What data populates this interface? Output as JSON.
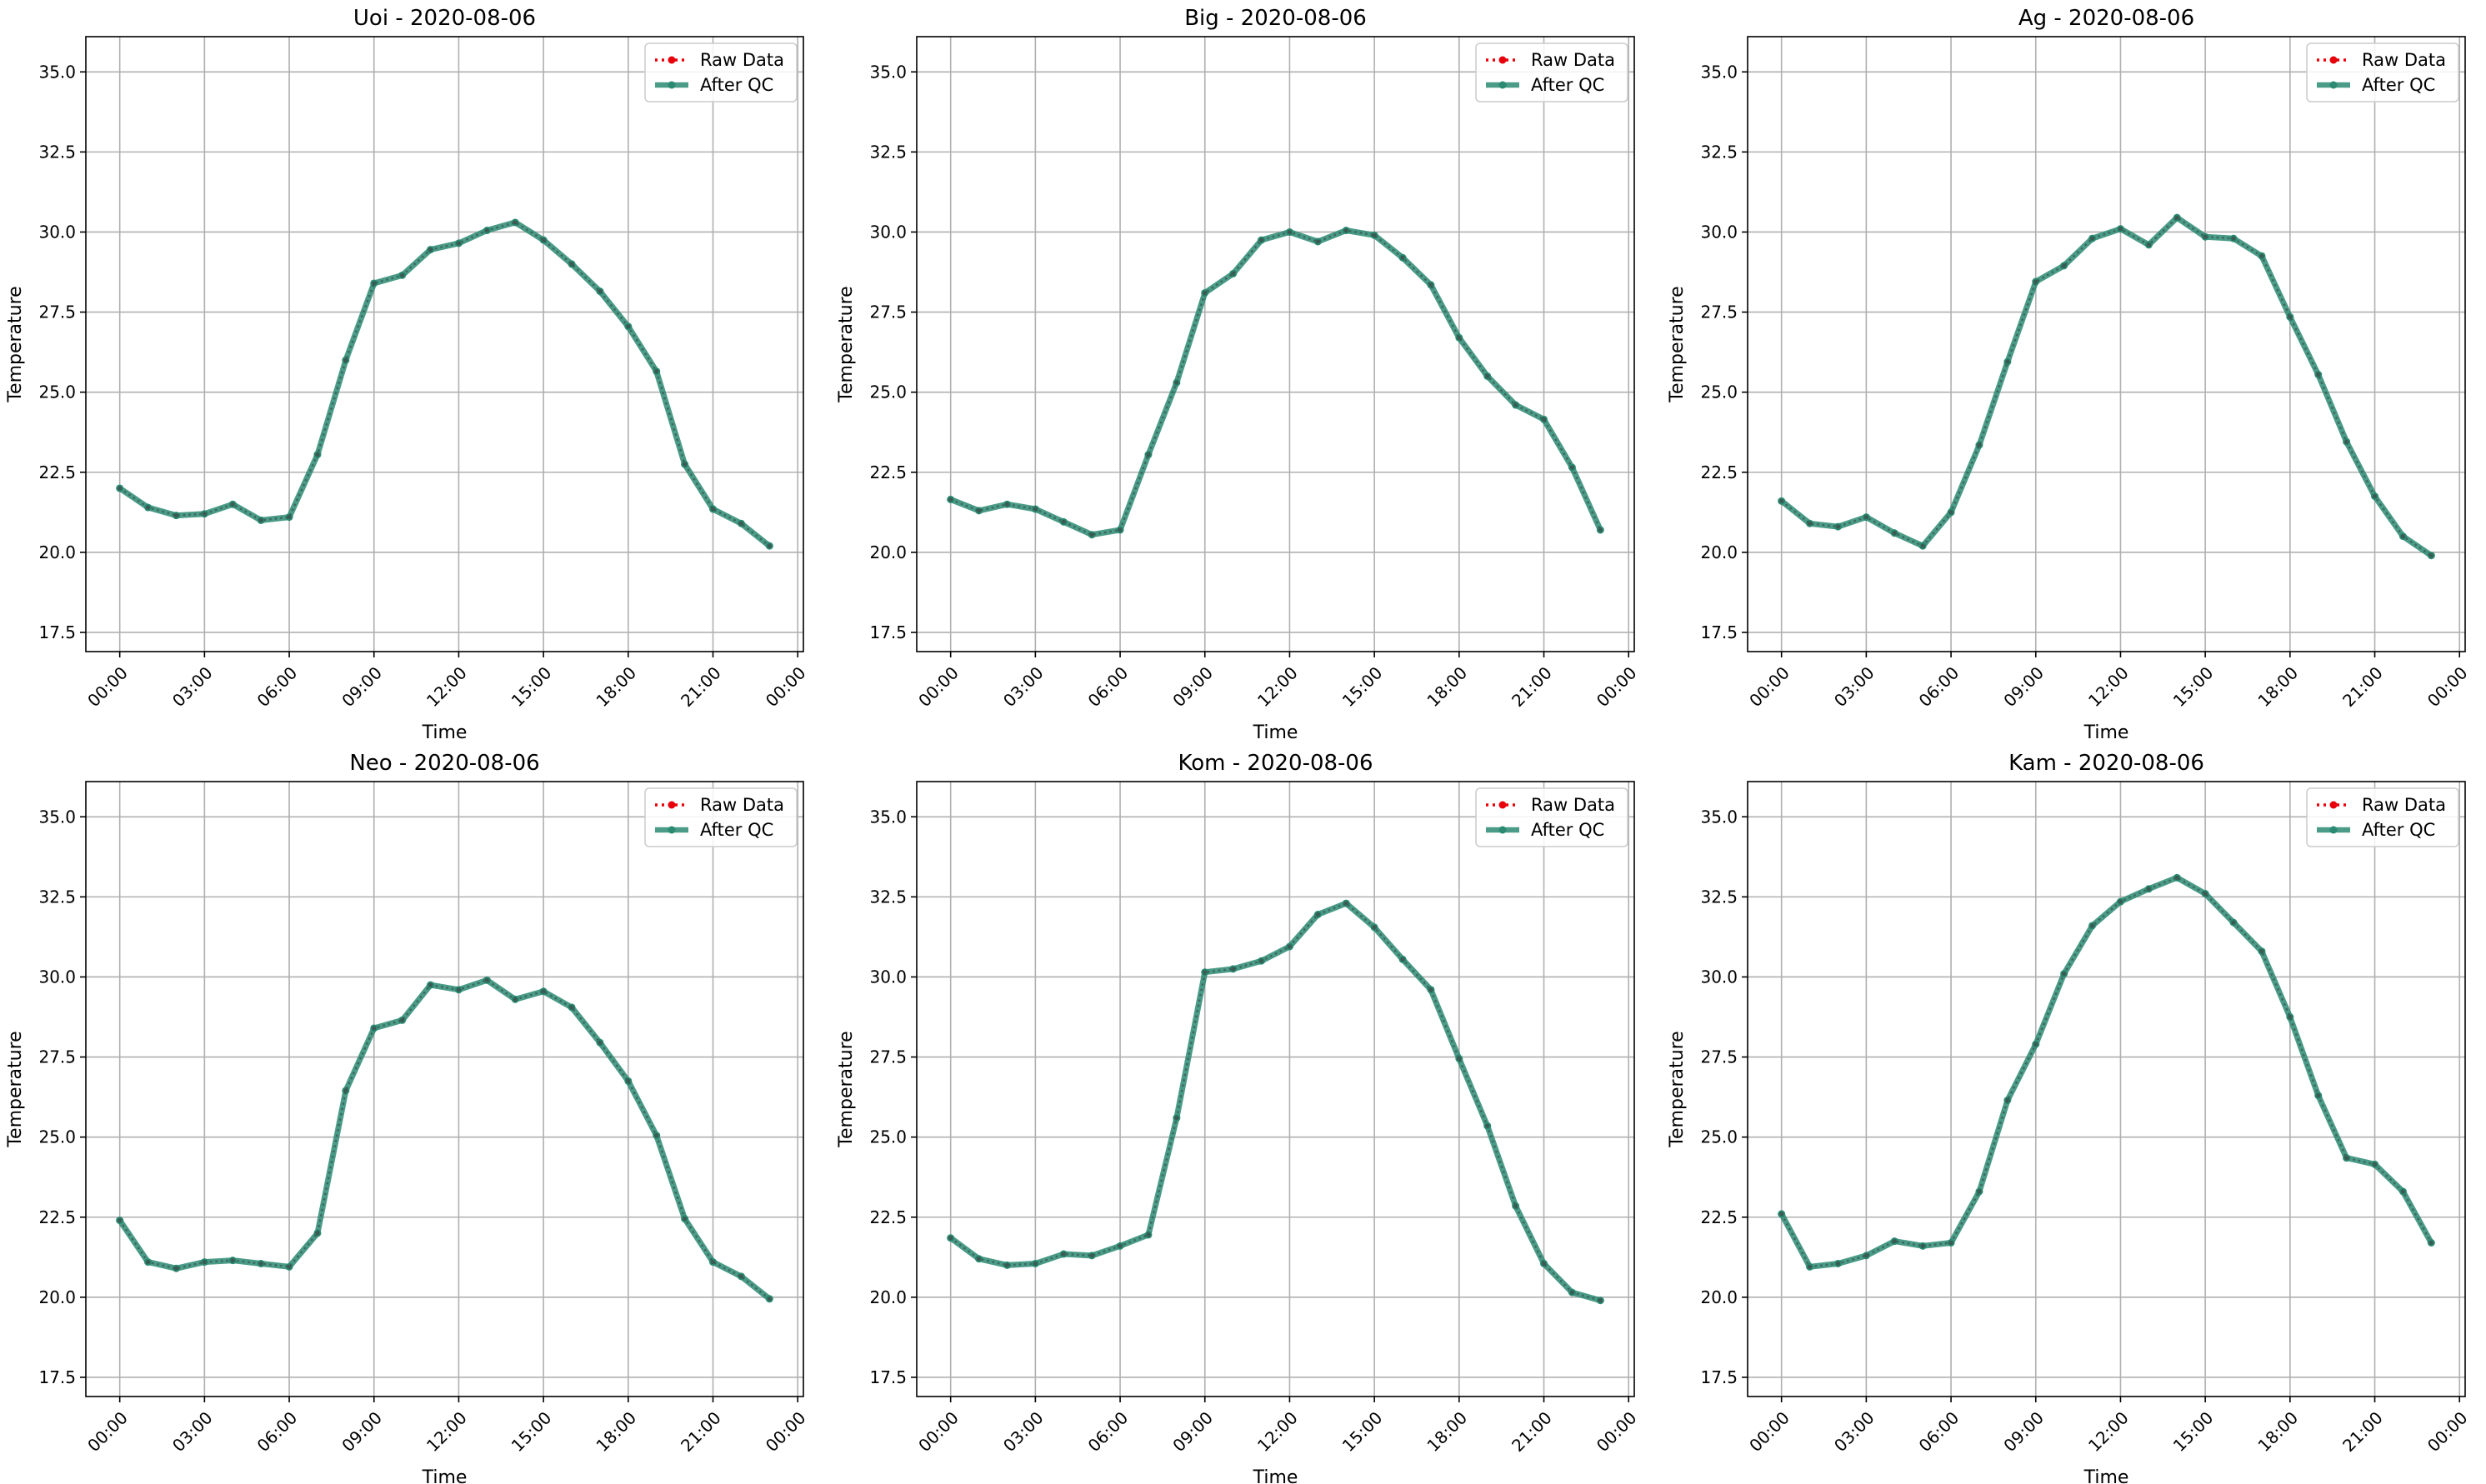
{
  "figure": {
    "background": "#ffffff"
  },
  "style": {
    "raw_color": "#e8000b",
    "qc_color": "#2a8a72",
    "grid_color": "#b0b0b0"
  },
  "chart_data": [
    {
      "type": "line",
      "title": "Uoi - 2020-08-06",
      "xlabel": "Time",
      "ylabel": "Temperature",
      "x_hours": [
        0,
        1,
        2,
        3,
        4,
        5,
        6,
        7,
        8,
        9,
        10,
        11,
        12,
        13,
        14,
        15,
        16,
        17,
        18,
        19,
        20,
        21,
        22,
        23
      ],
      "x_ticks": [
        "00:00",
        "03:00",
        "06:00",
        "09:00",
        "12:00",
        "15:00",
        "18:00",
        "21:00",
        "00:00"
      ],
      "xlim_hours": [
        -1.2,
        24.2
      ],
      "y_ticks": [
        "17.5",
        "20.0",
        "22.5",
        "25.0",
        "27.5",
        "30.0",
        "32.5",
        "35.0"
      ],
      "ylim": [
        16.9,
        36.1
      ],
      "grid": true,
      "legend_position": "top-right",
      "series": [
        {
          "name": "Raw Data",
          "values": [
            22.0,
            21.4,
            21.15,
            21.2,
            21.5,
            21.0,
            21.1,
            23.05,
            26.0,
            28.4,
            28.65,
            29.45,
            29.65,
            30.05,
            30.3,
            29.75,
            29.0,
            28.15,
            27.05,
            25.65,
            22.75,
            21.35,
            20.9,
            20.2
          ]
        },
        {
          "name": "After QC",
          "values": [
            22.0,
            21.4,
            21.15,
            21.2,
            21.5,
            21.0,
            21.1,
            23.05,
            26.0,
            28.4,
            28.65,
            29.45,
            29.65,
            30.05,
            30.3,
            29.75,
            29.0,
            28.15,
            27.05,
            25.65,
            22.75,
            21.35,
            20.9,
            20.2
          ]
        }
      ]
    },
    {
      "type": "line",
      "title": "Big - 2020-08-06",
      "xlabel": "Time",
      "ylabel": "Temperature",
      "x_hours": [
        0,
        1,
        2,
        3,
        4,
        5,
        6,
        7,
        8,
        9,
        10,
        11,
        12,
        13,
        14,
        15,
        16,
        17,
        18,
        19,
        20,
        21,
        22,
        23
      ],
      "x_ticks": [
        "00:00",
        "03:00",
        "06:00",
        "09:00",
        "12:00",
        "15:00",
        "18:00",
        "21:00",
        "00:00"
      ],
      "xlim_hours": [
        -1.2,
        24.2
      ],
      "y_ticks": [
        "17.5",
        "20.0",
        "22.5",
        "25.0",
        "27.5",
        "30.0",
        "32.5",
        "35.0"
      ],
      "ylim": [
        16.9,
        36.1
      ],
      "grid": true,
      "legend_position": "top-right",
      "series": [
        {
          "name": "Raw Data",
          "values": [
            21.65,
            21.3,
            21.5,
            21.35,
            20.95,
            20.55,
            20.7,
            23.05,
            25.3,
            28.1,
            28.7,
            29.75,
            30.0,
            29.7,
            30.05,
            29.9,
            29.2,
            28.35,
            26.7,
            25.5,
            24.6,
            24.15,
            22.65,
            20.7
          ]
        },
        {
          "name": "After QC",
          "values": [
            21.65,
            21.3,
            21.5,
            21.35,
            20.95,
            20.55,
            20.7,
            23.05,
            25.3,
            28.1,
            28.7,
            29.75,
            30.0,
            29.7,
            30.05,
            29.9,
            29.2,
            28.35,
            26.7,
            25.5,
            24.6,
            24.15,
            22.65,
            20.7
          ]
        }
      ]
    },
    {
      "type": "line",
      "title": "Ag - 2020-08-06",
      "xlabel": "Time",
      "ylabel": "Temperature",
      "x_hours": [
        0,
        1,
        2,
        3,
        4,
        5,
        6,
        7,
        8,
        9,
        10,
        11,
        12,
        13,
        14,
        15,
        16,
        17,
        18,
        19,
        20,
        21,
        22,
        23
      ],
      "x_ticks": [
        "00:00",
        "03:00",
        "06:00",
        "09:00",
        "12:00",
        "15:00",
        "18:00",
        "21:00",
        "00:00"
      ],
      "xlim_hours": [
        -1.2,
        24.2
      ],
      "y_ticks": [
        "17.5",
        "20.0",
        "22.5",
        "25.0",
        "27.5",
        "30.0",
        "32.5",
        "35.0"
      ],
      "ylim": [
        16.9,
        36.1
      ],
      "grid": true,
      "legend_position": "top-right",
      "series": [
        {
          "name": "Raw Data",
          "values": [
            21.6,
            20.9,
            20.8,
            21.1,
            20.6,
            20.2,
            21.25,
            23.35,
            25.95,
            28.45,
            28.95,
            29.8,
            30.1,
            29.6,
            30.45,
            29.85,
            29.8,
            29.25,
            27.35,
            25.55,
            23.45,
            21.75,
            20.5,
            19.9
          ]
        },
        {
          "name": "After QC",
          "values": [
            21.6,
            20.9,
            20.8,
            21.1,
            20.6,
            20.2,
            21.25,
            23.35,
            25.95,
            28.45,
            28.95,
            29.8,
            30.1,
            29.6,
            30.45,
            29.85,
            29.8,
            29.25,
            27.35,
            25.55,
            23.45,
            21.75,
            20.5,
            19.9
          ]
        }
      ]
    },
    {
      "type": "line",
      "title": "Neo - 2020-08-06",
      "xlabel": "Time",
      "ylabel": "Temperature",
      "x_hours": [
        0,
        1,
        2,
        3,
        4,
        5,
        6,
        7,
        8,
        9,
        10,
        11,
        12,
        13,
        14,
        15,
        16,
        17,
        18,
        19,
        20,
        21,
        22,
        23
      ],
      "x_ticks": [
        "00:00",
        "03:00",
        "06:00",
        "09:00",
        "12:00",
        "15:00",
        "18:00",
        "21:00",
        "00:00"
      ],
      "xlim_hours": [
        -1.2,
        24.2
      ],
      "y_ticks": [
        "17.5",
        "20.0",
        "22.5",
        "25.0",
        "27.5",
        "30.0",
        "32.5",
        "35.0"
      ],
      "ylim": [
        16.9,
        36.1
      ],
      "grid": true,
      "legend_position": "top-right",
      "series": [
        {
          "name": "Raw Data",
          "values": [
            22.4,
            21.1,
            20.9,
            21.1,
            21.15,
            21.05,
            20.95,
            22.0,
            26.45,
            28.4,
            28.65,
            29.75,
            29.6,
            29.9,
            29.3,
            29.55,
            29.05,
            27.95,
            26.75,
            25.05,
            22.45,
            21.1,
            20.65,
            19.95
          ]
        },
        {
          "name": "After QC",
          "values": [
            22.4,
            21.1,
            20.9,
            21.1,
            21.15,
            21.05,
            20.95,
            22.0,
            26.45,
            28.4,
            28.65,
            29.75,
            29.6,
            29.9,
            29.3,
            29.55,
            29.05,
            27.95,
            26.75,
            25.05,
            22.45,
            21.1,
            20.65,
            19.95
          ]
        }
      ]
    },
    {
      "type": "line",
      "title": "Kom - 2020-08-06",
      "xlabel": "Time",
      "ylabel": "Temperature",
      "x_hours": [
        0,
        1,
        2,
        3,
        4,
        5,
        6,
        7,
        8,
        9,
        10,
        11,
        12,
        13,
        14,
        15,
        16,
        17,
        18,
        19,
        20,
        21,
        22,
        23
      ],
      "x_ticks": [
        "00:00",
        "03:00",
        "06:00",
        "09:00",
        "12:00",
        "15:00",
        "18:00",
        "21:00",
        "00:00"
      ],
      "xlim_hours": [
        -1.2,
        24.2
      ],
      "y_ticks": [
        "17.5",
        "20.0",
        "22.5",
        "25.0",
        "27.5",
        "30.0",
        "32.5",
        "35.0"
      ],
      "ylim": [
        16.9,
        36.1
      ],
      "grid": true,
      "legend_position": "top-right",
      "series": [
        {
          "name": "Raw Data",
          "values": [
            21.85,
            21.2,
            21.0,
            21.05,
            21.35,
            21.3,
            21.6,
            21.95,
            25.6,
            30.15,
            30.25,
            30.5,
            30.95,
            31.95,
            32.3,
            31.55,
            30.55,
            29.6,
            27.45,
            25.35,
            22.85,
            21.05,
            20.15,
            19.9
          ]
        },
        {
          "name": "After QC",
          "values": [
            21.85,
            21.2,
            21.0,
            21.05,
            21.35,
            21.3,
            21.6,
            21.95,
            25.6,
            30.15,
            30.25,
            30.5,
            30.95,
            31.95,
            32.3,
            31.55,
            30.55,
            29.6,
            27.45,
            25.35,
            22.85,
            21.05,
            20.15,
            19.9
          ]
        }
      ]
    },
    {
      "type": "line",
      "title": "Kam - 2020-08-06",
      "xlabel": "Time",
      "ylabel": "Temperature",
      "x_hours": [
        0,
        1,
        2,
        3,
        4,
        5,
        6,
        7,
        8,
        9,
        10,
        11,
        12,
        13,
        14,
        15,
        16,
        17,
        18,
        19,
        20,
        21,
        22,
        23
      ],
      "x_ticks": [
        "00:00",
        "03:00",
        "06:00",
        "09:00",
        "12:00",
        "15:00",
        "18:00",
        "21:00",
        "00:00"
      ],
      "xlim_hours": [
        -1.2,
        24.2
      ],
      "y_ticks": [
        "17.5",
        "20.0",
        "22.5",
        "25.0",
        "27.5",
        "30.0",
        "32.5",
        "35.0"
      ],
      "ylim": [
        16.9,
        36.1
      ],
      "grid": true,
      "legend_position": "top-right",
      "series": [
        {
          "name": "Raw Data",
          "values": [
            22.6,
            20.95,
            21.05,
            21.3,
            21.75,
            21.6,
            21.7,
            23.3,
            26.15,
            27.9,
            30.1,
            31.6,
            32.35,
            32.75,
            33.1,
            32.6,
            31.7,
            30.8,
            28.75,
            26.3,
            24.35,
            24.15,
            23.3,
            21.7
          ]
        },
        {
          "name": "After QC",
          "values": [
            22.6,
            20.95,
            21.05,
            21.3,
            21.75,
            21.6,
            21.7,
            23.3,
            26.15,
            27.9,
            30.1,
            31.6,
            32.35,
            32.75,
            33.1,
            32.6,
            31.7,
            30.8,
            28.75,
            26.3,
            24.35,
            24.15,
            23.3,
            21.7
          ]
        }
      ]
    }
  ]
}
